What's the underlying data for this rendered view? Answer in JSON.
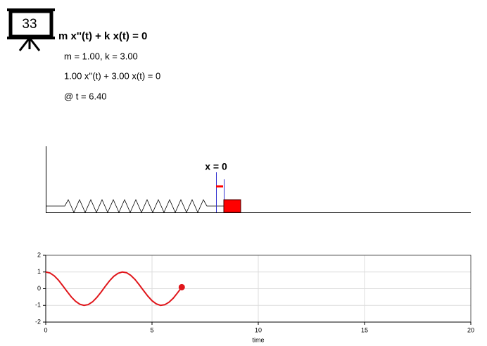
{
  "icon_label": "33",
  "equation": "m x''(t) + k x(t) = 0",
  "params": "m = 1.00, k = 3.00",
  "instance": "1.00 x''(t) + 3.00 x(t) = 0",
  "time_label": "@ t = 6.40",
  "diagram": {
    "origin_label": "x = 0"
  },
  "chart_data": {
    "type": "line",
    "xlabel": "time",
    "xlim": [
      0,
      20
    ],
    "ylim": [
      -2,
      2
    ],
    "xticks": [
      0,
      5,
      10,
      15,
      20
    ],
    "yticks": [
      -2,
      -1,
      0,
      1,
      2
    ],
    "grid": true,
    "series": [
      {
        "kind": "line",
        "color": "#e0161b",
        "x": [
          0,
          0.2,
          0.4,
          0.6,
          0.8,
          1,
          1.2,
          1.4,
          1.6,
          1.8,
          2,
          2.2,
          2.4,
          2.6,
          2.8,
          3,
          3.2,
          3.4,
          3.6,
          3.8,
          4,
          4.2,
          4.4,
          4.6,
          4.8,
          5,
          5.2,
          5.4,
          5.6,
          5.8,
          6,
          6.2,
          6.4
        ],
        "values": [
          1,
          0.94,
          0.77,
          0.51,
          0.18,
          -0.16,
          -0.49,
          -0.75,
          -0.93,
          -1,
          -0.95,
          -0.79,
          -0.53,
          -0.21,
          0.14,
          0.47,
          0.74,
          0.92,
          1,
          0.96,
          0.8,
          0.55,
          0.23,
          -0.11,
          -0.44,
          -0.72,
          -0.91,
          -1,
          -0.96,
          -0.81,
          -0.57,
          -0.25,
          0.09
        ]
      },
      {
        "kind": "point",
        "color": "#e0161b",
        "x": [
          6.4
        ],
        "values": [
          0.09
        ]
      }
    ]
  }
}
